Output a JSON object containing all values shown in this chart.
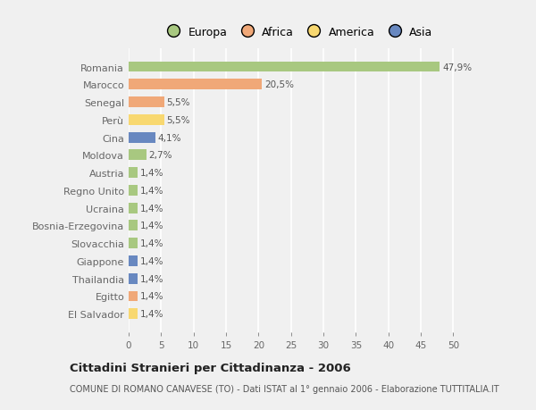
{
  "countries": [
    "Romania",
    "Marocco",
    "Senegal",
    "Perù",
    "Cina",
    "Moldova",
    "Austria",
    "Regno Unito",
    "Ucraina",
    "Bosnia-Erzegovina",
    "Slovacchia",
    "Giappone",
    "Thailandia",
    "Egitto",
    "El Salvador"
  ],
  "values": [
    47.9,
    20.5,
    5.5,
    5.5,
    4.1,
    2.7,
    1.4,
    1.4,
    1.4,
    1.4,
    1.4,
    1.4,
    1.4,
    1.4,
    1.4
  ],
  "labels": [
    "47,9%",
    "20,5%",
    "5,5%",
    "5,5%",
    "4,1%",
    "2,7%",
    "1,4%",
    "1,4%",
    "1,4%",
    "1,4%",
    "1,4%",
    "1,4%",
    "1,4%",
    "1,4%",
    "1,4%"
  ],
  "colors": [
    "#a8c880",
    "#f0a878",
    "#f0a878",
    "#f8d870",
    "#6888c0",
    "#a8c880",
    "#a8c880",
    "#a8c880",
    "#a8c880",
    "#a8c880",
    "#a8c880",
    "#6888c0",
    "#6888c0",
    "#f0a878",
    "#f8d870"
  ],
  "continent_labels": [
    "Europa",
    "Africa",
    "America",
    "Asia"
  ],
  "continent_colors": [
    "#a8c880",
    "#f0a878",
    "#f8d870",
    "#6888c0"
  ],
  "title": "Cittadini Stranieri per Cittadinanza - 2006",
  "subtitle": "COMUNE DI ROMANO CANAVESE (TO) - Dati ISTAT al 1° gennaio 2006 - Elaborazione TUTTITALIA.IT",
  "xlim": [
    0,
    52
  ],
  "bg_color": "#f0f0f0",
  "grid_color": "#ffffff",
  "label_offsets": [
    0.5,
    0.5,
    0.3,
    0.3,
    0.3,
    0.3,
    0.3,
    0.3,
    0.3,
    0.3,
    0.3,
    0.3,
    0.3,
    0.3,
    0.3
  ]
}
